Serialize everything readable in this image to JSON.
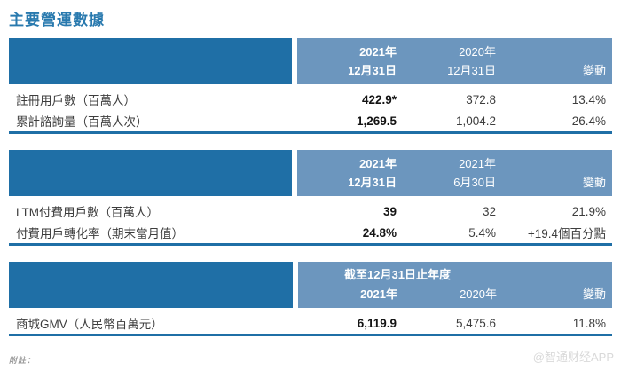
{
  "page": {
    "title": "主要營運數據",
    "footnote": "附註：",
    "watermark": "@智通财经APP"
  },
  "colors": {
    "header_dark_blue": "#1F6FA6",
    "header_light_blue": "#6C96BE",
    "title_blue": "#2879AE",
    "rule_blue": "#1F6FA6"
  },
  "tables": [
    {
      "header": {
        "col1_line1": "2021年",
        "col1_line2": "12月31日",
        "col2_line1": "2020年",
        "col2_line2": "12月31日",
        "col3": "變動"
      },
      "rows": [
        {
          "label": "註冊用戶數（百萬人）",
          "v1": "422.9*",
          "v2": "372.8",
          "change": "13.4%"
        },
        {
          "label": "累計諮詢量（百萬人次）",
          "v1": "1,269.5",
          "v2": "1,004.2",
          "change": "26.4%"
        }
      ]
    },
    {
      "header": {
        "col1_line1": "2021年",
        "col1_line2": "12月31日",
        "col2_line1": "2021年",
        "col2_line2": "6月30日",
        "col3": "變動"
      },
      "rows": [
        {
          "label": "LTM付費用戶數（百萬人）",
          "v1": "39",
          "v2": "32",
          "change": "21.9%"
        },
        {
          "label": "付費用戶轉化率（期末當月值）",
          "v1": "24.8%",
          "v2": "5.4%",
          "change": "+19.4個百分點"
        }
      ]
    },
    {
      "header": {
        "span": "截至12月31日止年度",
        "col1": "2021年",
        "col2": "2020年",
        "col3": "變動"
      },
      "rows": [
        {
          "label": "商城GMV（人民幣百萬元）",
          "v1": "6,119.9",
          "v2": "5,475.6",
          "change": "11.8%"
        }
      ]
    }
  ]
}
